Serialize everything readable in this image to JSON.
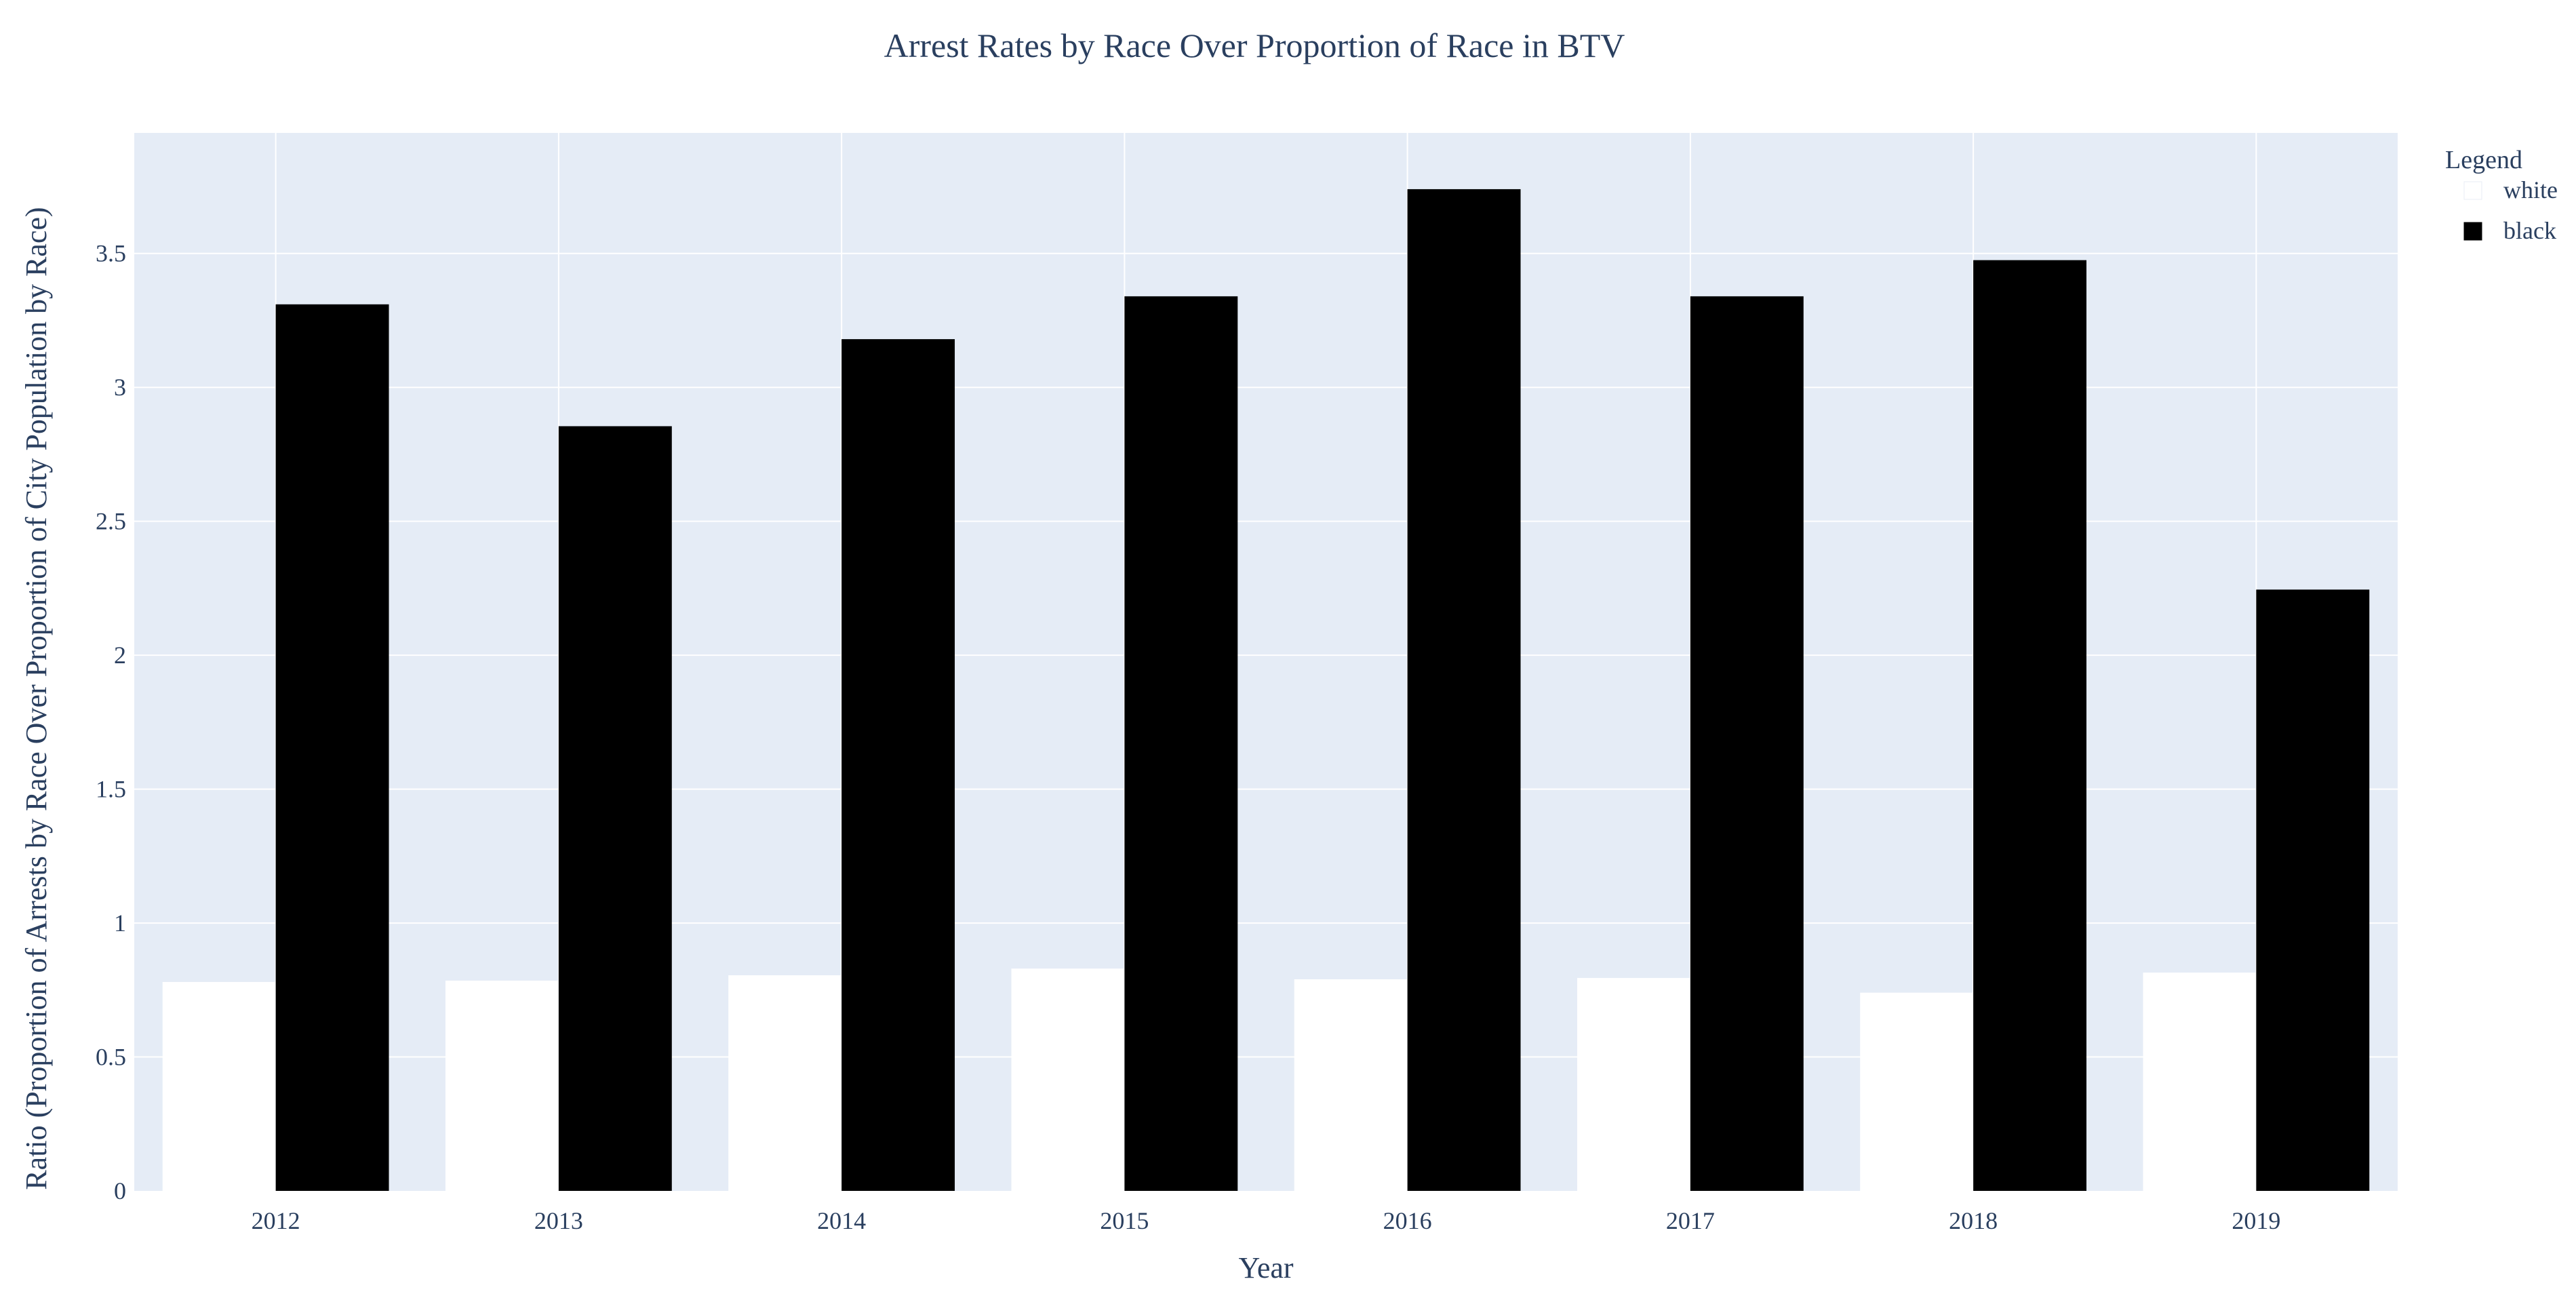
{
  "chart_data": {
    "type": "bar",
    "title": "Arrest Rates by Race Over Proportion of Race in BTV",
    "xlabel": "Year",
    "ylabel": "Ratio (Proportion of Arrests by Race Over Proportion of City Population by Race)",
    "categories": [
      "2012",
      "2013",
      "2014",
      "2015",
      "2016",
      "2017",
      "2018",
      "2019"
    ],
    "series": [
      {
        "name": "white",
        "color": "#ffffff",
        "values": [
          0.78,
          0.785,
          0.805,
          0.83,
          0.79,
          0.795,
          0.74,
          0.815
        ]
      },
      {
        "name": "black",
        "color": "#000000",
        "values": [
          3.31,
          2.855,
          3.18,
          3.34,
          3.74,
          3.34,
          3.475,
          2.245
        ]
      }
    ],
    "ylim": [
      0,
      3.95
    ],
    "yticks": [
      0,
      0.5,
      1,
      1.5,
      2,
      2.5,
      3,
      3.5
    ],
    "ytick_labels": [
      "0",
      "0.5",
      "1",
      "1.5",
      "2",
      "2.5",
      "3",
      "3.5"
    ],
    "grid": true,
    "legend": {
      "title": "Legend",
      "placement": "top-right"
    },
    "colors": {
      "plot_bg": "#e5ecf6",
      "grid": "#ffffff",
      "text": "#2a3f5f"
    }
  }
}
